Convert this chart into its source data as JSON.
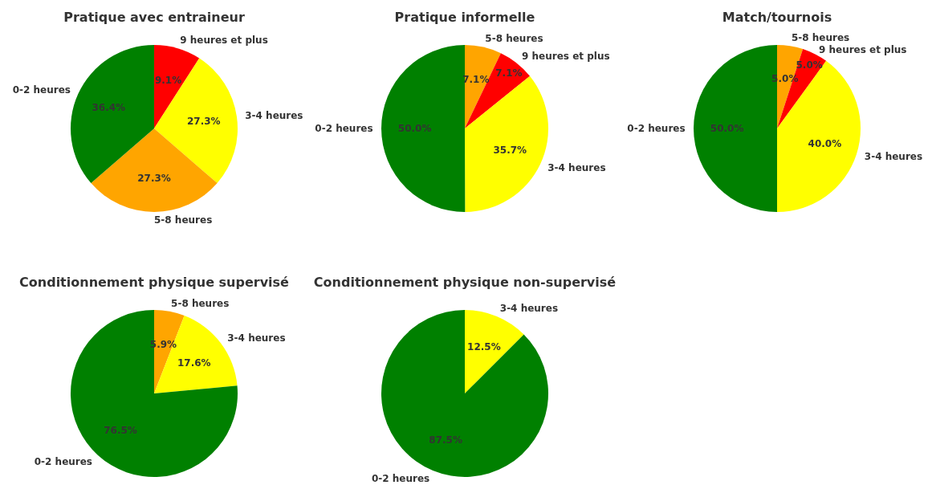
{
  "chart_data": [
    {
      "type": "pie",
      "title": "Pratique avec entraineur",
      "categories": [
        "9 heures et plus",
        "3-4 heures",
        "5-8 heures",
        "0-2 heures"
      ],
      "values": [
        9.1,
        27.3,
        27.3,
        36.4
      ],
      "value_labels": [
        "9.1%",
        "27.3%",
        "27.3%",
        "36.4%"
      ],
      "colors": [
        "#ff0000",
        "#ffff00",
        "#ffa500",
        "#008000"
      ]
    },
    {
      "type": "pie",
      "title": "Pratique informelle",
      "categories": [
        "5-8 heures",
        "9 heures et plus",
        "3-4 heures",
        "0-2 heures"
      ],
      "values": [
        7.1,
        7.1,
        35.7,
        50.0
      ],
      "value_labels": [
        "7.1%",
        "7.1%",
        "35.7%",
        "50.0%"
      ],
      "colors": [
        "#ffa500",
        "#ff0000",
        "#ffff00",
        "#008000"
      ]
    },
    {
      "type": "pie",
      "title": "Match/tournois",
      "categories": [
        "5-8 heures",
        "9 heures et plus",
        "3-4 heures",
        "0-2 heures"
      ],
      "values": [
        5.0,
        5.0,
        40.0,
        50.0
      ],
      "value_labels": [
        "5.0%",
        "5.0%",
        "40.0%",
        "50.0%"
      ],
      "colors": [
        "#ffa500",
        "#ff0000",
        "#ffff00",
        "#008000"
      ]
    },
    {
      "type": "pie",
      "title": "Conditionnement physique supervisé",
      "categories": [
        "5-8 heures",
        "3-4 heures",
        "0-2 heures"
      ],
      "values": [
        5.9,
        17.6,
        76.5
      ],
      "value_labels": [
        "5.9%",
        "17.6%",
        "76.5%"
      ],
      "colors": [
        "#ffa500",
        "#ffff00",
        "#008000"
      ]
    },
    {
      "type": "pie",
      "title": "Conditionnement physique non-supervisé",
      "categories": [
        "3-4 heures",
        "0-2 heures"
      ],
      "values": [
        12.5,
        87.5
      ],
      "value_labels": [
        "12.5%",
        "87.5%"
      ],
      "colors": [
        "#ffff00",
        "#008000"
      ]
    }
  ]
}
